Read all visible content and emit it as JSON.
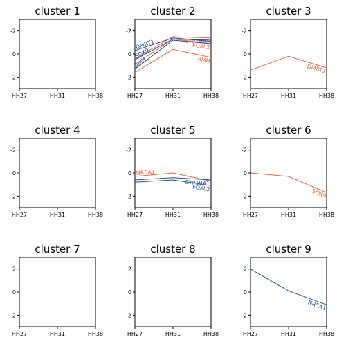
{
  "colors": {
    "orange": "#f4633a",
    "blue": "#1f4e9a",
    "axis": "#000000"
  },
  "chart_data": [
    {
      "type": "line",
      "title": "cluster 1",
      "categories": [
        "HH27",
        "HH31",
        "HH38"
      ],
      "ylim": [
        -3,
        3
      ],
      "yticks": [
        -2,
        0,
        2
      ],
      "series": []
    },
    {
      "type": "line",
      "title": "cluster 2",
      "categories": [
        "HH27",
        "HH31",
        "HH38"
      ],
      "ylim": [
        -3,
        3
      ],
      "yticks": [
        -2,
        0,
        2
      ],
      "series": [
        {
          "name": "CYP19A1",
          "color": "orange",
          "values": [
            -0.4,
            1.5,
            1.4
          ],
          "label_anchor": "end"
        },
        {
          "name": "FOXL2",
          "color": "orange",
          "values": [
            -0.9,
            1.3,
            0.9
          ],
          "label_anchor": "end"
        },
        {
          "name": "AMH",
          "color": "orange",
          "values": [
            -1.6,
            0.4,
            -0.3
          ],
          "label_anchor": "end"
        },
        {
          "name": "DMRT1",
          "color": "blue",
          "values": [
            0.3,
            1.4,
            1.1
          ],
          "label_anchor": "start"
        },
        {
          "name": "SOX9",
          "color": "blue",
          "values": [
            -0.5,
            1.3,
            1.2
          ],
          "label_anchor": "start"
        },
        {
          "name": "AMH",
          "color": "blue",
          "values": [
            -1.3,
            1.2,
            0.9
          ],
          "label_anchor": "start"
        }
      ]
    },
    {
      "type": "line",
      "title": "cluster 3",
      "categories": [
        "HH27",
        "HH31",
        "HH38"
      ],
      "ylim": [
        -3,
        3
      ],
      "yticks": [
        -2,
        0,
        2
      ],
      "series": [
        {
          "name": "DMRT1",
          "color": "orange",
          "values": [
            -1.4,
            -0.2,
            -1.2
          ],
          "label_anchor": "end"
        }
      ]
    },
    {
      "type": "line",
      "title": "cluster 4",
      "categories": [
        "HH27",
        "HH31",
        "HH38"
      ],
      "ylim": [
        -3,
        3
      ],
      "yticks": [
        -2,
        0,
        2
      ],
      "series": []
    },
    {
      "type": "line",
      "title": "cluster 5",
      "categories": [
        "HH27",
        "HH31",
        "HH38"
      ],
      "ylim": [
        -3,
        3
      ],
      "yticks": [
        -2,
        0,
        2
      ],
      "series": [
        {
          "name": "NR5A1",
          "color": "orange",
          "values": [
            -0.3,
            0.0,
            -0.7
          ],
          "label_anchor": "start"
        },
        {
          "name": "CYP19A1",
          "color": "blue",
          "values": [
            -0.6,
            -0.4,
            -0.6
          ],
          "label_anchor": "end"
        },
        {
          "name": "FOXL2",
          "color": "blue",
          "values": [
            -0.8,
            -0.6,
            -1.1
          ],
          "label_anchor": "end"
        }
      ]
    },
    {
      "type": "line",
      "title": "cluster 6",
      "categories": [
        "HH27",
        "HH31",
        "HH38"
      ],
      "ylim": [
        -3,
        3
      ],
      "yticks": [
        -2,
        0,
        2
      ],
      "series": [
        {
          "name": "SOX9",
          "color": "orange",
          "values": [
            0.0,
            -0.3,
            -1.7
          ],
          "label_anchor": "end"
        }
      ]
    },
    {
      "type": "line",
      "title": "cluster 7",
      "categories": [
        "HH27",
        "HH31",
        "HH38"
      ],
      "ylim": [
        -3,
        3
      ],
      "yticks": [
        2,
        0,
        2
      ],
      "series": []
    },
    {
      "type": "line",
      "title": "cluster 8",
      "categories": [
        "HH27",
        "HH31",
        "HH38"
      ],
      "ylim": [
        -3,
        3
      ],
      "yticks": [
        2,
        0,
        2
      ],
      "series": []
    },
    {
      "type": "line",
      "title": "cluster 9",
      "categories": [
        "HH27",
        "HH31",
        "HH38"
      ],
      "ylim": [
        -3,
        3
      ],
      "yticks": [
        2,
        0,
        2
      ],
      "series": [
        {
          "name": "NR5A1",
          "color": "blue",
          "values": [
            2.0,
            0.1,
            -1.1
          ],
          "label_anchor": "end"
        }
      ]
    }
  ]
}
